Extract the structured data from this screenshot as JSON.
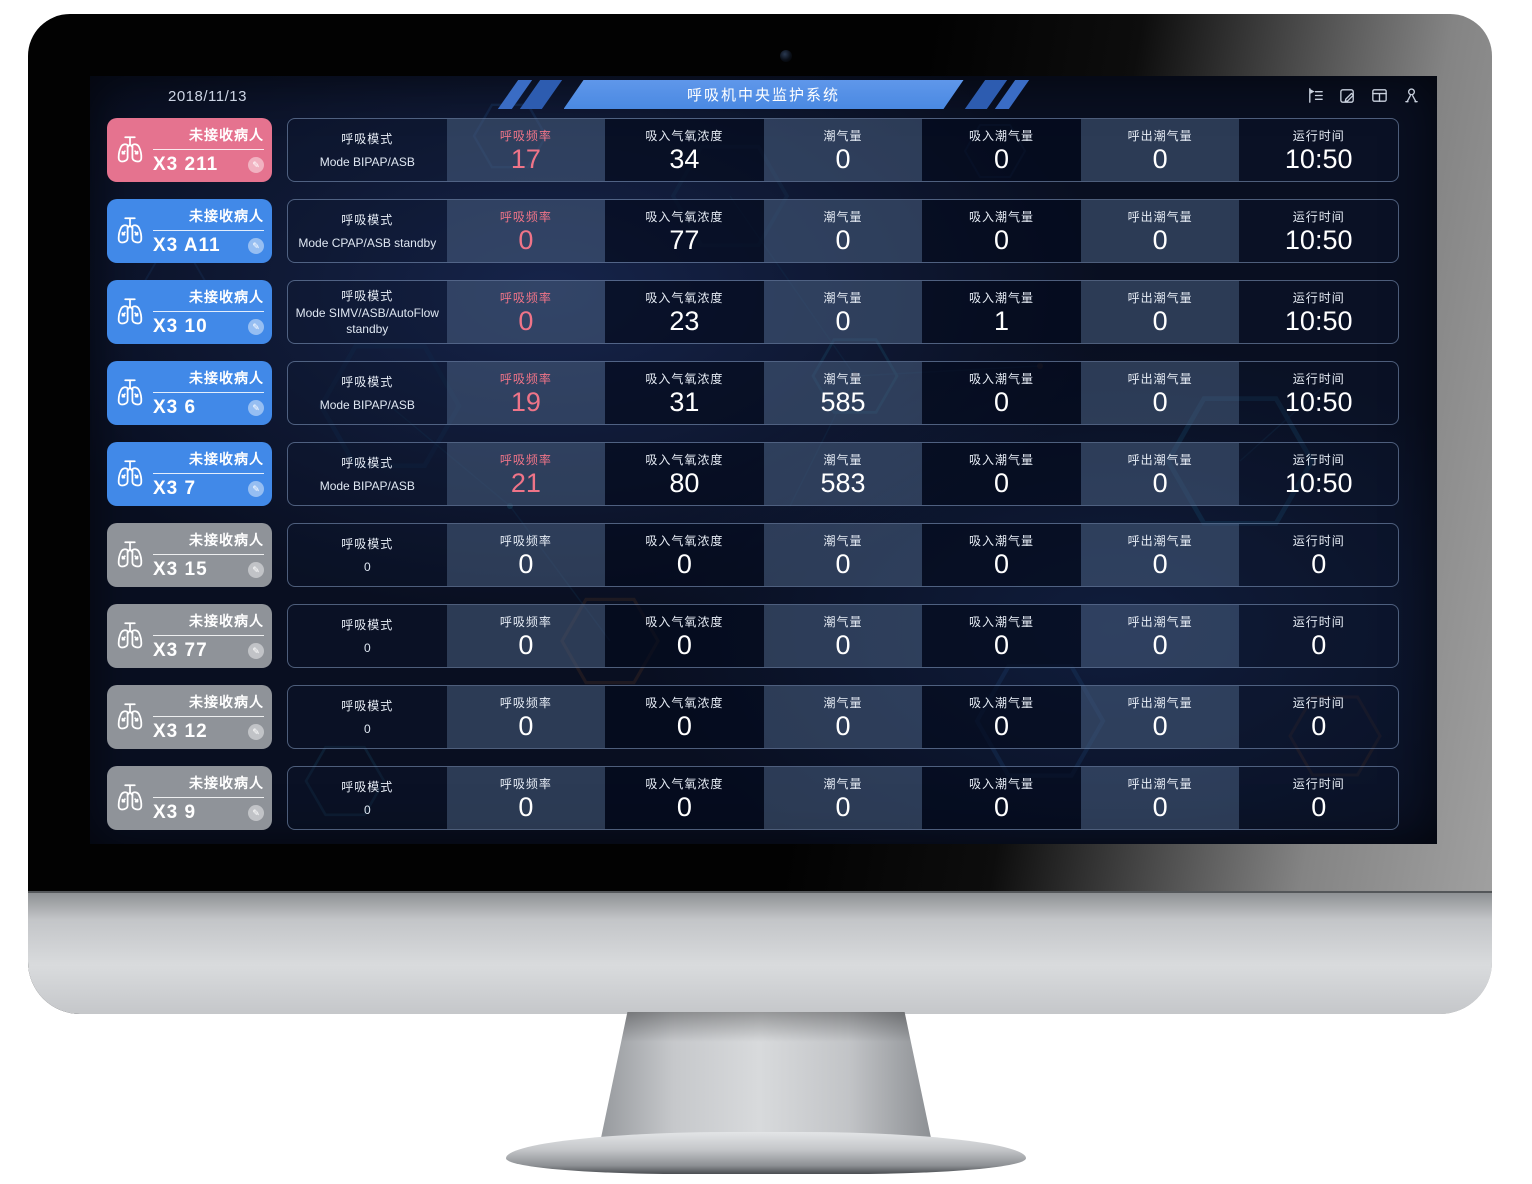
{
  "colors": {
    "accent_pink": "#ef7488",
    "card_pink": "#e5738f",
    "card_blue": "#4189e8",
    "card_gray": "#8f9399",
    "banner_blue": "#4a89e2"
  },
  "header": {
    "date": "2018/11/13",
    "title": "呼吸机中央监护系统",
    "toolbar_icons": [
      "collapse-menu-icon",
      "edit-note-icon",
      "window-layout-icon",
      "user-icon"
    ]
  },
  "card_status_label": "未接收病人",
  "columns": [
    "呼吸模式",
    "呼吸频率",
    "吸入气氧浓度",
    "潮气量",
    "吸入潮气量",
    "呼出潮气量",
    "运行时间"
  ],
  "rows": [
    {
      "id": "X3 211",
      "state": "alarm",
      "mode": "Mode BIPAP/ASB",
      "rate": "17",
      "fio2": "34",
      "tidal": "0",
      "insp_tidal": "0",
      "exp_tidal": "0",
      "runtime": "10:50"
    },
    {
      "id": "X3 A11",
      "state": "active",
      "mode": "Mode CPAP/ASB standby",
      "rate": "0",
      "fio2": "77",
      "tidal": "0",
      "insp_tidal": "0",
      "exp_tidal": "0",
      "runtime": "10:50"
    },
    {
      "id": "X3 10",
      "state": "active",
      "mode": "Mode SIMV/ASB/AutoFlow standby",
      "rate": "0",
      "fio2": "23",
      "tidal": "0",
      "insp_tidal": "1",
      "exp_tidal": "0",
      "runtime": "10:50"
    },
    {
      "id": "X3 6",
      "state": "active",
      "mode": "Mode BIPAP/ASB",
      "rate": "19",
      "fio2": "31",
      "tidal": "585",
      "insp_tidal": "0",
      "exp_tidal": "0",
      "runtime": "10:50"
    },
    {
      "id": "X3 7",
      "state": "active",
      "mode": "Mode BIPAP/ASB",
      "rate": "21",
      "fio2": "80",
      "tidal": "583",
      "insp_tidal": "0",
      "exp_tidal": "0",
      "runtime": "10:50"
    },
    {
      "id": "X3 15",
      "state": "offline",
      "mode": "0",
      "rate": "0",
      "fio2": "0",
      "tidal": "0",
      "insp_tidal": "0",
      "exp_tidal": "0",
      "runtime": "0"
    },
    {
      "id": "X3 77",
      "state": "offline",
      "mode": "0",
      "rate": "0",
      "fio2": "0",
      "tidal": "0",
      "insp_tidal": "0",
      "exp_tidal": "0",
      "runtime": "0"
    },
    {
      "id": "X3 12",
      "state": "offline",
      "mode": "0",
      "rate": "0",
      "fio2": "0",
      "tidal": "0",
      "insp_tidal": "0",
      "exp_tidal": "0",
      "runtime": "0"
    },
    {
      "id": "X3 9",
      "state": "offline",
      "mode": "0",
      "rate": "0",
      "fio2": "0",
      "tidal": "0",
      "insp_tidal": "0",
      "exp_tidal": "0",
      "runtime": "0"
    }
  ]
}
